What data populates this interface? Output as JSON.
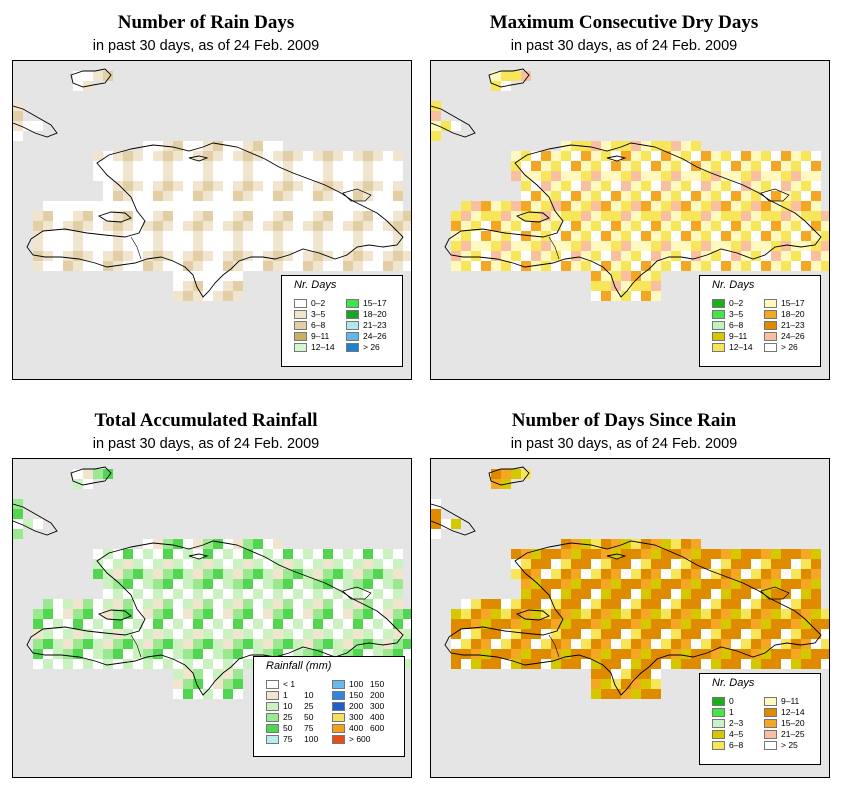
{
  "panels": [
    {
      "title": "Number of Rain Days",
      "subtitle": "in past 30 days, as of  24 Feb. 2009",
      "legend": {
        "title": "Nr. Days",
        "dual": false,
        "items": [
          {
            "label": "0–2",
            "color": "#ffffff"
          },
          {
            "label": "3–5",
            "color": "#f2e5cf"
          },
          {
            "label": "6–8",
            "color": "#e2cfa6"
          },
          {
            "label": "9–11",
            "color": "#c9b063"
          },
          {
            "label": "12–14",
            "color": "#d2f7d2"
          },
          {
            "label": "15–17",
            "color": "#3ce64a"
          },
          {
            "label": "18–20",
            "color": "#17a624"
          },
          {
            "label": "21–23",
            "color": "#b0e8f0"
          },
          {
            "label": "24–26",
            "color": "#5fb8e8"
          },
          {
            "label": "> 26",
            "color": "#1a82d0"
          }
        ]
      }
    },
    {
      "title": "Maximum Consecutive Dry Days",
      "subtitle": "in past 30 days, as of  24 Feb. 2009",
      "legend": {
        "title": "Nr. Days",
        "dual": false,
        "items": [
          {
            "label": "0–2",
            "color": "#19b019"
          },
          {
            "label": "3–5",
            "color": "#46e646"
          },
          {
            "label": "6–8",
            "color": "#bff2bf"
          },
          {
            "label": "9–11",
            "color": "#d6c800"
          },
          {
            "label": "12–14",
            "color": "#f7e65a"
          },
          {
            "label": "15–17",
            "color": "#fff8bf"
          },
          {
            "label": "18–20",
            "color": "#f5a623"
          },
          {
            "label": "21–23",
            "color": "#e08a00"
          },
          {
            "label": "24–26",
            "color": "#f8c0a0"
          },
          {
            "label": "> 26",
            "color": "#ffffff"
          }
        ]
      }
    },
    {
      "title": "Total Accumulated Rainfall",
      "subtitle": "in past 30 days, as of  24 Feb. 2009",
      "legend": {
        "title": "Rainfall (mm)",
        "dual": true,
        "items": [
          {
            "a": "< 1",
            "b": "",
            "color": "#ffffff"
          },
          {
            "a": "1",
            "b": "10",
            "color": "#f2e5cf"
          },
          {
            "a": "10",
            "b": "25",
            "color": "#c9f2c0"
          },
          {
            "a": "25",
            "b": "50",
            "color": "#9ae890"
          },
          {
            "a": "50",
            "b": "75",
            "color": "#52d652"
          },
          {
            "a": "75",
            "b": "100",
            "color": "#b8eef2"
          },
          {
            "a": "100",
            "b": "150",
            "color": "#6ab8ee"
          },
          {
            "a": "150",
            "b": "200",
            "color": "#2e86e0"
          },
          {
            "a": "200",
            "b": "300",
            "color": "#1f5fc8"
          },
          {
            "a": "300",
            "b": "400",
            "color": "#f5e05a"
          },
          {
            "a": "400",
            "b": "600",
            "color": "#f59e1a"
          },
          {
            "a": "> 600",
            "b": "",
            "color": "#e84a18"
          }
        ]
      }
    },
    {
      "title": "Number of Days Since Rain",
      "subtitle": "in past 30 days, as of  24 Feb. 2009",
      "legend": {
        "title": "Nr. Days",
        "dual": false,
        "items": [
          {
            "label": "0",
            "color": "#19b019"
          },
          {
            "label": "1",
            "color": "#46e646"
          },
          {
            "label": "2–3",
            "color": "#c9f2c9"
          },
          {
            "label": "4–5",
            "color": "#d6c800"
          },
          {
            "label": "6–8",
            "color": "#f7e65a"
          },
          {
            "label": "9–11",
            "color": "#fff8bf"
          },
          {
            "label": "12–14",
            "color": "#e08a00"
          },
          {
            "label": "15–20",
            "color": "#f5a623"
          },
          {
            "label": "21–25",
            "color": "#f8c0a0"
          },
          {
            "label": "> 25",
            "color": "#ffffff"
          }
        ]
      }
    }
  ]
}
